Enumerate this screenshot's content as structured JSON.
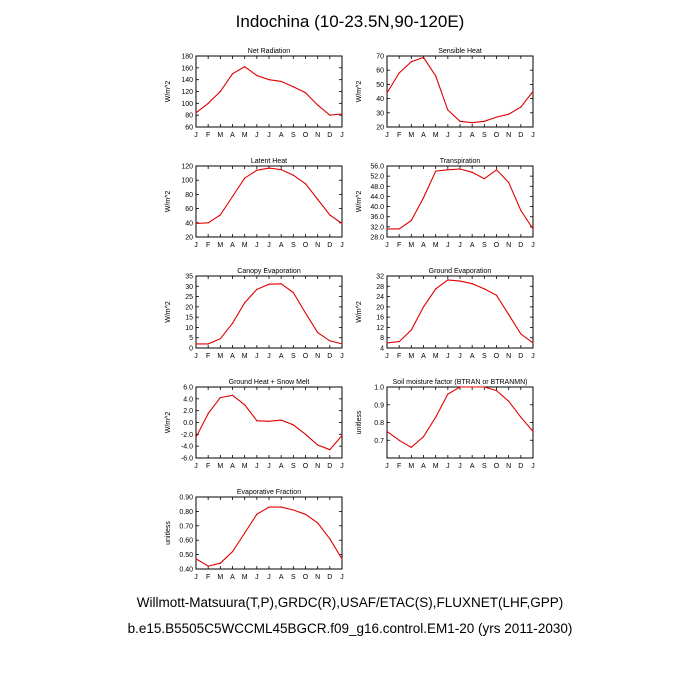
{
  "title": "Indochina (10-23.5N,90-120E)",
  "footer": {
    "line1": "Willmott-Matsuura(T,P),GRDC(R),USAF/ETAC(S),FLUXNET(LHF,GPP)",
    "line2": "b.e15.B5505C5WCCML45BGCR.f09_g16.control.EM1-20 (yrs 2011-2030)"
  },
  "line_color": "#e00000",
  "chart_data": [
    {
      "type": "line",
      "title": "Net Radiation",
      "ylabel": "W/m^2",
      "x": [
        "J",
        "F",
        "M",
        "A",
        "M",
        "J",
        "J",
        "A",
        "S",
        "O",
        "N",
        "D",
        "J"
      ],
      "values": [
        84,
        100,
        120,
        150,
        162,
        147,
        140,
        137,
        128,
        118,
        97,
        80,
        82
      ],
      "ylim": [
        60,
        180
      ],
      "yticks": [
        "60",
        "80",
        "100",
        "120",
        "140",
        "160",
        "180"
      ]
    },
    {
      "type": "line",
      "title": "Sensible Heat",
      "ylabel": "W/m^2",
      "x": [
        "J",
        "F",
        "M",
        "A",
        "M",
        "J",
        "J",
        "A",
        "S",
        "O",
        "N",
        "D",
        "J"
      ],
      "values": [
        44,
        58,
        66,
        69,
        56,
        32,
        24,
        23,
        24,
        27,
        29,
        34,
        45
      ],
      "ylim": [
        20,
        70
      ],
      "yticks": [
        "20",
        "30",
        "40",
        "50",
        "60",
        "70"
      ]
    },
    {
      "type": "line",
      "title": "Latent Heat",
      "ylabel": "W/m^2",
      "x": [
        "J",
        "F",
        "M",
        "A",
        "M",
        "J",
        "J",
        "A",
        "S",
        "O",
        "N",
        "D",
        "J"
      ],
      "values": [
        39,
        40,
        51,
        77,
        103,
        114,
        117,
        115,
        107,
        95,
        73,
        51,
        39
      ],
      "ylim": [
        20,
        120
      ],
      "yticks": [
        "20",
        "40",
        "60",
        "80",
        "100",
        "120"
      ]
    },
    {
      "type": "line",
      "title": "Transpiration",
      "ylabel": "W/m^2",
      "x": [
        "J",
        "F",
        "M",
        "A",
        "M",
        "J",
        "J",
        "A",
        "S",
        "O",
        "N",
        "D",
        "J"
      ],
      "values": [
        31.2,
        31.2,
        34.5,
        43.5,
        54.0,
        54.5,
        54.8,
        53.5,
        51.0,
        54.5,
        49.5,
        38.5,
        31.2
      ],
      "ylim": [
        28,
        56
      ],
      "yticks": [
        "28.0",
        "32.0",
        "36.0",
        "40.0",
        "44.0",
        "48.0",
        "52.0",
        "56.0"
      ]
    },
    {
      "type": "line",
      "title": "Canopy Evaporation",
      "ylabel": "W/m^2",
      "x": [
        "J",
        "F",
        "M",
        "A",
        "M",
        "J",
        "J",
        "A",
        "S",
        "O",
        "N",
        "D",
        "J"
      ],
      "values": [
        2,
        2,
        4.5,
        12,
        22,
        28.5,
        31,
        31.2,
        27,
        17,
        7.5,
        3.5,
        2
      ],
      "ylim": [
        0,
        35
      ],
      "yticks": [
        "0",
        "5",
        "10",
        "15",
        "20",
        "25",
        "30",
        "35"
      ]
    },
    {
      "type": "line",
      "title": "Ground Evaporation",
      "ylabel": "W/m^2",
      "x": [
        "J",
        "F",
        "M",
        "A",
        "M",
        "J",
        "J",
        "A",
        "S",
        "O",
        "N",
        "D",
        "J"
      ],
      "values": [
        6,
        6.5,
        11,
        20,
        27,
        30.5,
        30,
        29,
        27,
        24.5,
        17,
        9.5,
        6
      ],
      "ylim": [
        4,
        32
      ],
      "yticks": [
        "4",
        "8",
        "12",
        "16",
        "20",
        "24",
        "28",
        "32"
      ]
    },
    {
      "type": "line",
      "title": "Ground Heat + Snow Melt",
      "ylabel": "W/m^2",
      "x": [
        "J",
        "F",
        "M",
        "A",
        "M",
        "J",
        "J",
        "A",
        "S",
        "O",
        "N",
        "D",
        "J"
      ],
      "values": [
        -2.5,
        1.5,
        4.2,
        4.6,
        3.0,
        0.3,
        0.2,
        0.4,
        -0.4,
        -2.0,
        -3.8,
        -4.6,
        -2.2
      ],
      "ylim": [
        -6,
        6
      ],
      "yticks": [
        "-6.0",
        "-4.0",
        "-2.0",
        "0.0",
        "2.0",
        "4.0",
        "6.0"
      ]
    },
    {
      "type": "line",
      "title": "Soil moisture factor (BTRAN or BTRANMN)",
      "ylabel": "unitless",
      "x": [
        "J",
        "F",
        "M",
        "A",
        "M",
        "J",
        "J",
        "A",
        "S",
        "O",
        "N",
        "D",
        "J"
      ],
      "values": [
        0.75,
        0.7,
        0.66,
        0.72,
        0.83,
        0.96,
        1.0,
        1.0,
        1.0,
        0.98,
        0.92,
        0.83,
        0.75
      ],
      "ylim": [
        0.6,
        1.0
      ],
      "yticks": [
        "0.7",
        "0.8",
        "0.9",
        "1.0"
      ]
    },
    {
      "type": "line",
      "title": "Evaporative Fraction",
      "ylabel": "unitless",
      "x": [
        "J",
        "F",
        "M",
        "A",
        "M",
        "J",
        "J",
        "A",
        "S",
        "O",
        "N",
        "D",
        "J"
      ],
      "values": [
        0.47,
        0.42,
        0.44,
        0.52,
        0.65,
        0.78,
        0.83,
        0.83,
        0.81,
        0.78,
        0.72,
        0.61,
        0.47
      ],
      "ylim": [
        0.4,
        0.9
      ],
      "yticks": [
        "0.40",
        "0.50",
        "0.60",
        "0.70",
        "0.80",
        "0.90"
      ]
    }
  ]
}
